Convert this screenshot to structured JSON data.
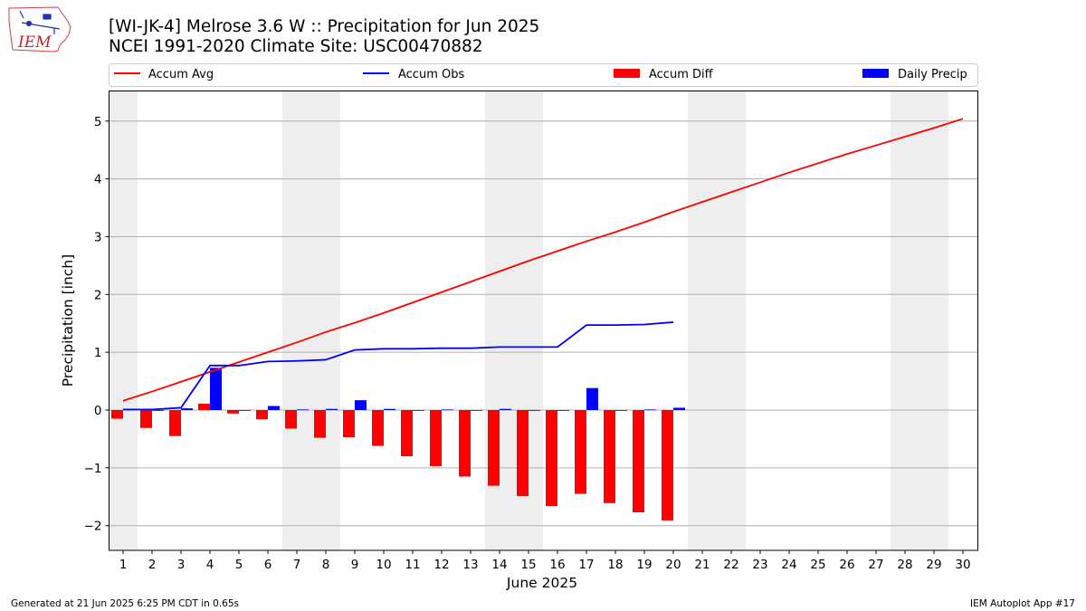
{
  "header": {
    "title_line1": "[WI-JK-4] Melrose 3.6 W :: Precipitation for Jun 2025",
    "title_line2": "NCEI 1991-2020 Climate Site: USC00470882",
    "logo_text": "IEM"
  },
  "footer": {
    "generated": "Generated at 21 Jun 2025 6:25 PM CDT in 0.65s",
    "app": "IEM Autoplot App #17"
  },
  "chart_data": {
    "type": "bar",
    "xlabel": "June 2025",
    "ylabel": "Precipitation [inch]",
    "xlim": [
      1,
      30
    ],
    "ylim": [
      -2.4,
      5.55
    ],
    "yticks": [
      -2,
      -1,
      0,
      1,
      2,
      3,
      4,
      5
    ],
    "ytick_labels": [
      "−2",
      "−1",
      "0",
      "1",
      "2",
      "3",
      "4",
      "5"
    ],
    "xticks": [
      1,
      2,
      3,
      4,
      5,
      6,
      7,
      8,
      9,
      10,
      11,
      12,
      13,
      14,
      15,
      16,
      17,
      18,
      19,
      20,
      21,
      22,
      23,
      24,
      25,
      26,
      27,
      28,
      29,
      30
    ],
    "grid": "y",
    "legend_placement": "top",
    "weekend_shading_days": [
      1,
      7,
      8,
      14,
      15,
      21,
      22,
      28,
      29
    ],
    "series": [
      {
        "name": "Accum Avg",
        "kind": "line",
        "color": "#ff0000",
        "x": [
          1,
          2,
          3,
          4,
          5,
          6,
          7,
          8,
          9,
          10,
          11,
          12,
          13,
          14,
          15,
          16,
          17,
          18,
          19,
          20,
          21,
          22,
          23,
          24,
          25,
          26,
          27,
          28,
          29,
          30
        ],
        "values": [
          0.16,
          0.32,
          0.49,
          0.66,
          0.83,
          1.0,
          1.17,
          1.35,
          1.51,
          1.68,
          1.86,
          2.04,
          2.22,
          2.4,
          2.58,
          2.75,
          2.92,
          3.08,
          3.25,
          3.43,
          3.6,
          3.77,
          3.94,
          4.11,
          4.27,
          4.43,
          4.58,
          4.73,
          4.88,
          5.04
        ]
      },
      {
        "name": "Accum Obs",
        "kind": "line",
        "color": "#0000ff",
        "x": [
          1,
          2,
          3,
          4,
          5,
          6,
          7,
          8,
          9,
          10,
          11,
          12,
          13,
          14,
          15,
          16,
          17,
          18,
          19,
          20
        ],
        "values": [
          0.01,
          0.01,
          0.04,
          0.77,
          0.77,
          0.84,
          0.85,
          0.87,
          1.04,
          1.06,
          1.06,
          1.07,
          1.07,
          1.09,
          1.09,
          1.09,
          1.47,
          1.47,
          1.48,
          1.52
        ]
      },
      {
        "name": "Accum Diff",
        "kind": "bar",
        "color": "#ff0000",
        "x": [
          1,
          2,
          3,
          4,
          5,
          6,
          7,
          8,
          9,
          10,
          11,
          12,
          13,
          14,
          15,
          16,
          17,
          18,
          19,
          20
        ],
        "values": [
          -0.15,
          -0.31,
          -0.45,
          0.11,
          -0.06,
          -0.16,
          -0.32,
          -0.48,
          -0.47,
          -0.62,
          -0.8,
          -0.97,
          -1.15,
          -1.31,
          -1.49,
          -1.66,
          -1.45,
          -1.61,
          -1.77,
          -1.91
        ]
      },
      {
        "name": "Daily Precip",
        "kind": "bar",
        "color": "#0000ff",
        "x": [
          1,
          2,
          3,
          4,
          5,
          6,
          7,
          8,
          9,
          10,
          11,
          12,
          13,
          14,
          15,
          16,
          17,
          18,
          19,
          20
        ],
        "values": [
          0.01,
          0.0,
          0.03,
          0.73,
          0.0,
          0.07,
          0.01,
          0.02,
          0.17,
          0.02,
          0.0,
          0.01,
          0.0,
          0.02,
          0.0,
          0.0,
          0.38,
          0.0,
          0.01,
          0.04
        ]
      }
    ]
  }
}
